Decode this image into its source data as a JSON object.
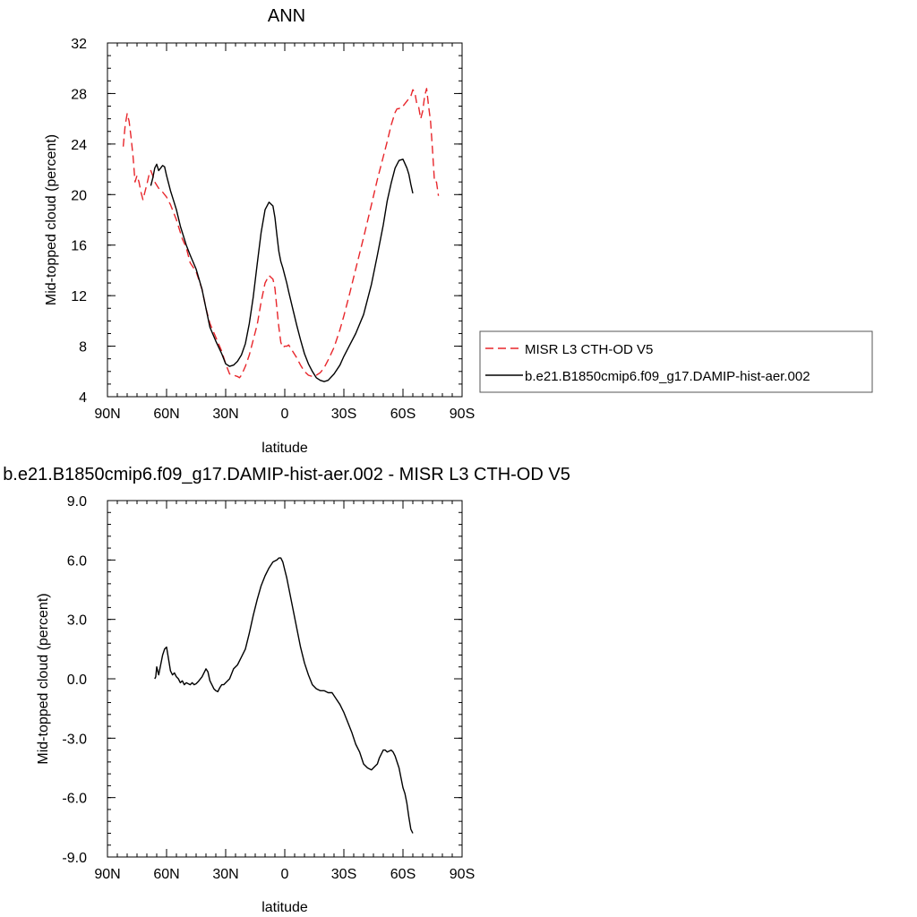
{
  "chart_data": [
    {
      "type": "line",
      "title": "ANN",
      "xlabel": "latitude",
      "ylabel": "Mid-topped cloud (percent)",
      "xlim": [
        90,
        -90
      ],
      "ylim": [
        4,
        32
      ],
      "xticks": [
        90,
        60,
        30,
        0,
        -30,
        -60,
        -90
      ],
      "xtick_labels": [
        "90N",
        "60N",
        "30N",
        "0",
        "30S",
        "60S",
        "90S"
      ],
      "yticks": [
        4,
        8,
        12,
        16,
        20,
        24,
        28,
        32
      ],
      "ytick_labels": [
        "4",
        "8",
        "12",
        "16",
        "20",
        "24",
        "28",
        "32"
      ],
      "legend_position": "right",
      "series": [
        {
          "name": "MISR L3 CTH-OD V5",
          "color": "#e8262b",
          "dash": "dashed",
          "x": [
            82,
            81,
            80,
            79,
            78,
            77,
            76,
            75,
            74,
            73,
            72,
            71,
            70,
            69,
            68,
            67,
            66,
            64,
            62,
            60,
            58,
            55,
            52,
            50,
            48,
            45,
            42,
            40,
            38,
            35,
            32,
            30,
            28,
            26,
            24,
            23,
            22,
            20,
            18,
            16,
            14,
            12,
            10,
            8,
            6,
            5,
            4,
            3,
            2,
            1,
            0,
            -1,
            -2,
            -4,
            -6,
            -8,
            -10,
            -12,
            -14,
            -16,
            -18,
            -20,
            -22,
            -25,
            -28,
            -30,
            -33,
            -36,
            -40,
            -44,
            -47,
            -50,
            -52,
            -54,
            -56,
            -57,
            -58,
            -59,
            -60,
            -62,
            -64,
            -65,
            -66,
            -67,
            -68,
            -69,
            -70,
            -71,
            -72,
            -73,
            -74,
            -75,
            -76,
            -77,
            -78
          ],
          "y": [
            23.8,
            25.5,
            26.4,
            25.8,
            24.5,
            23.0,
            21.0,
            21.5,
            21.0,
            20.2,
            19.6,
            20.2,
            20.8,
            21.5,
            21.9,
            21.5,
            21.0,
            20.5,
            20.2,
            19.8,
            19.2,
            18.0,
            16.5,
            15.8,
            14.6,
            13.9,
            12.5,
            11.0,
            9.8,
            8.7,
            7.6,
            6.6,
            5.8,
            5.7,
            5.6,
            5.5,
            5.7,
            6.4,
            7.3,
            8.5,
            9.7,
            11.5,
            13.0,
            13.6,
            13.3,
            12.6,
            11.0,
            9.5,
            8.3,
            7.9,
            8.0,
            8.0,
            8.1,
            7.6,
            7.1,
            6.5,
            6.0,
            5.7,
            5.6,
            5.7,
            5.9,
            6.3,
            6.9,
            7.9,
            9.3,
            10.4,
            12.2,
            14.1,
            16.6,
            19.2,
            21.2,
            23.0,
            24.2,
            25.5,
            26.5,
            26.8,
            26.8,
            27.0,
            27.0,
            27.4,
            27.8,
            28.3,
            28.1,
            27.2,
            26.9,
            26.0,
            26.6,
            27.8,
            28.4,
            27.0,
            25.8,
            23.5,
            21.0,
            21.0,
            19.9
          ]
        },
        {
          "name": "b.e21.B1850cmip6.f09_g17.DAMIP-hist-aer.002",
          "color": "#000000",
          "dash": "solid",
          "x": [
            68,
            67,
            66,
            65,
            64,
            63,
            62,
            61,
            60,
            59,
            58,
            57,
            55,
            53,
            50,
            48,
            45,
            42,
            40,
            38,
            35,
            32,
            30,
            28,
            26,
            24,
            22,
            20,
            18,
            16,
            14,
            12,
            10,
            8,
            6,
            5,
            4,
            3,
            2,
            1,
            0,
            -1,
            -2,
            -4,
            -6,
            -8,
            -10,
            -12,
            -14,
            -16,
            -18,
            -20,
            -22,
            -25,
            -28,
            -30,
            -33,
            -36,
            -40,
            -44,
            -47,
            -50,
            -52,
            -54,
            -56,
            -58,
            -60,
            -62,
            -63,
            -64,
            -65
          ],
          "y": [
            20.7,
            21.3,
            22.1,
            22.4,
            21.9,
            22.1,
            22.3,
            22.2,
            21.5,
            20.9,
            20.3,
            19.8,
            18.8,
            17.5,
            16.0,
            15.2,
            14.1,
            12.5,
            11.0,
            9.5,
            8.4,
            7.4,
            6.6,
            6.4,
            6.5,
            6.8,
            7.3,
            8.2,
            9.8,
            11.9,
            14.5,
            17.0,
            18.8,
            19.4,
            19.1,
            18.2,
            16.8,
            15.5,
            14.7,
            14.2,
            13.6,
            13.0,
            12.3,
            11.0,
            9.7,
            8.5,
            7.4,
            6.6,
            6.0,
            5.5,
            5.3,
            5.2,
            5.3,
            5.8,
            6.5,
            7.2,
            8.1,
            9.0,
            10.5,
            12.9,
            15.2,
            17.6,
            19.5,
            20.9,
            22.1,
            22.7,
            22.8,
            22.1,
            21.6,
            20.8,
            20.1
          ]
        }
      ]
    },
    {
      "type": "line",
      "title": "b.e21.B1850cmip6.f09_g17.DAMIP-hist-aer.002 - MISR L3 CTH-OD V5",
      "xlabel": "latitude",
      "ylabel": "Mid-topped cloud (percent)",
      "xlim": [
        90,
        -90
      ],
      "ylim": [
        -9,
        9
      ],
      "xticks": [
        90,
        60,
        30,
        0,
        -30,
        -60,
        -90
      ],
      "xtick_labels": [
        "90N",
        "60N",
        "30N",
        "0",
        "30S",
        "60S",
        "90S"
      ],
      "yticks": [
        -9,
        -6,
        -3,
        0,
        3,
        6,
        9
      ],
      "ytick_labels": [
        "-9.0",
        "-6.0",
        "-3.0",
        "0.0",
        "3.0",
        "6.0",
        "9.0"
      ],
      "series": [
        {
          "color": "#000000",
          "dash": "solid",
          "x": [
            66,
            65.5,
            65,
            64.5,
            64,
            63,
            62,
            61,
            60,
            59,
            58,
            57,
            56,
            55,
            54,
            53,
            52,
            51,
            50,
            48,
            47,
            46,
            45,
            44,
            42,
            40,
            39,
            38,
            37,
            36,
            35,
            34,
            33,
            32,
            31,
            30,
            28,
            26,
            24,
            22,
            20,
            18,
            16,
            14,
            12,
            10,
            8,
            6,
            4,
            3,
            2,
            1,
            0,
            -1,
            -2,
            -4,
            -6,
            -8,
            -10,
            -12,
            -14,
            -16,
            -18,
            -20,
            -22,
            -24,
            -26,
            -28,
            -30,
            -32,
            -34,
            -36,
            -38,
            -40,
            -42,
            -44,
            -46,
            -47,
            -48,
            -50,
            -51,
            -52,
            -53,
            -54,
            -55,
            -56,
            -57,
            -58,
            -59,
            -60,
            -61,
            -62,
            -63,
            -64,
            -65
          ],
          "y": [
            0.0,
            0.1,
            0.6,
            0.4,
            0.2,
            0.7,
            1.2,
            1.5,
            1.6,
            1.0,
            0.4,
            0.2,
            0.3,
            0.1,
            0.0,
            -0.2,
            -0.1,
            -0.3,
            -0.2,
            -0.3,
            -0.2,
            -0.3,
            -0.25,
            -0.15,
            0.1,
            0.5,
            0.35,
            -0.1,
            -0.3,
            -0.5,
            -0.6,
            -0.65,
            -0.45,
            -0.3,
            -0.3,
            -0.2,
            0.0,
            0.5,
            0.7,
            1.1,
            1.5,
            2.3,
            3.2,
            4.0,
            4.7,
            5.2,
            5.6,
            5.9,
            6.0,
            6.1,
            6.1,
            5.9,
            5.5,
            5.1,
            4.6,
            3.6,
            2.6,
            1.6,
            0.8,
            0.2,
            -0.3,
            -0.5,
            -0.6,
            -0.6,
            -0.7,
            -0.7,
            -1.0,
            -1.3,
            -1.7,
            -2.2,
            -2.7,
            -3.3,
            -3.7,
            -4.3,
            -4.5,
            -4.6,
            -4.4,
            -4.3,
            -4.0,
            -3.6,
            -3.6,
            -3.7,
            -3.65,
            -3.6,
            -3.7,
            -3.9,
            -4.2,
            -4.5,
            -5.0,
            -5.5,
            -5.8,
            -6.3,
            -7.0,
            -7.6,
            -7.8
          ]
        }
      ]
    }
  ]
}
